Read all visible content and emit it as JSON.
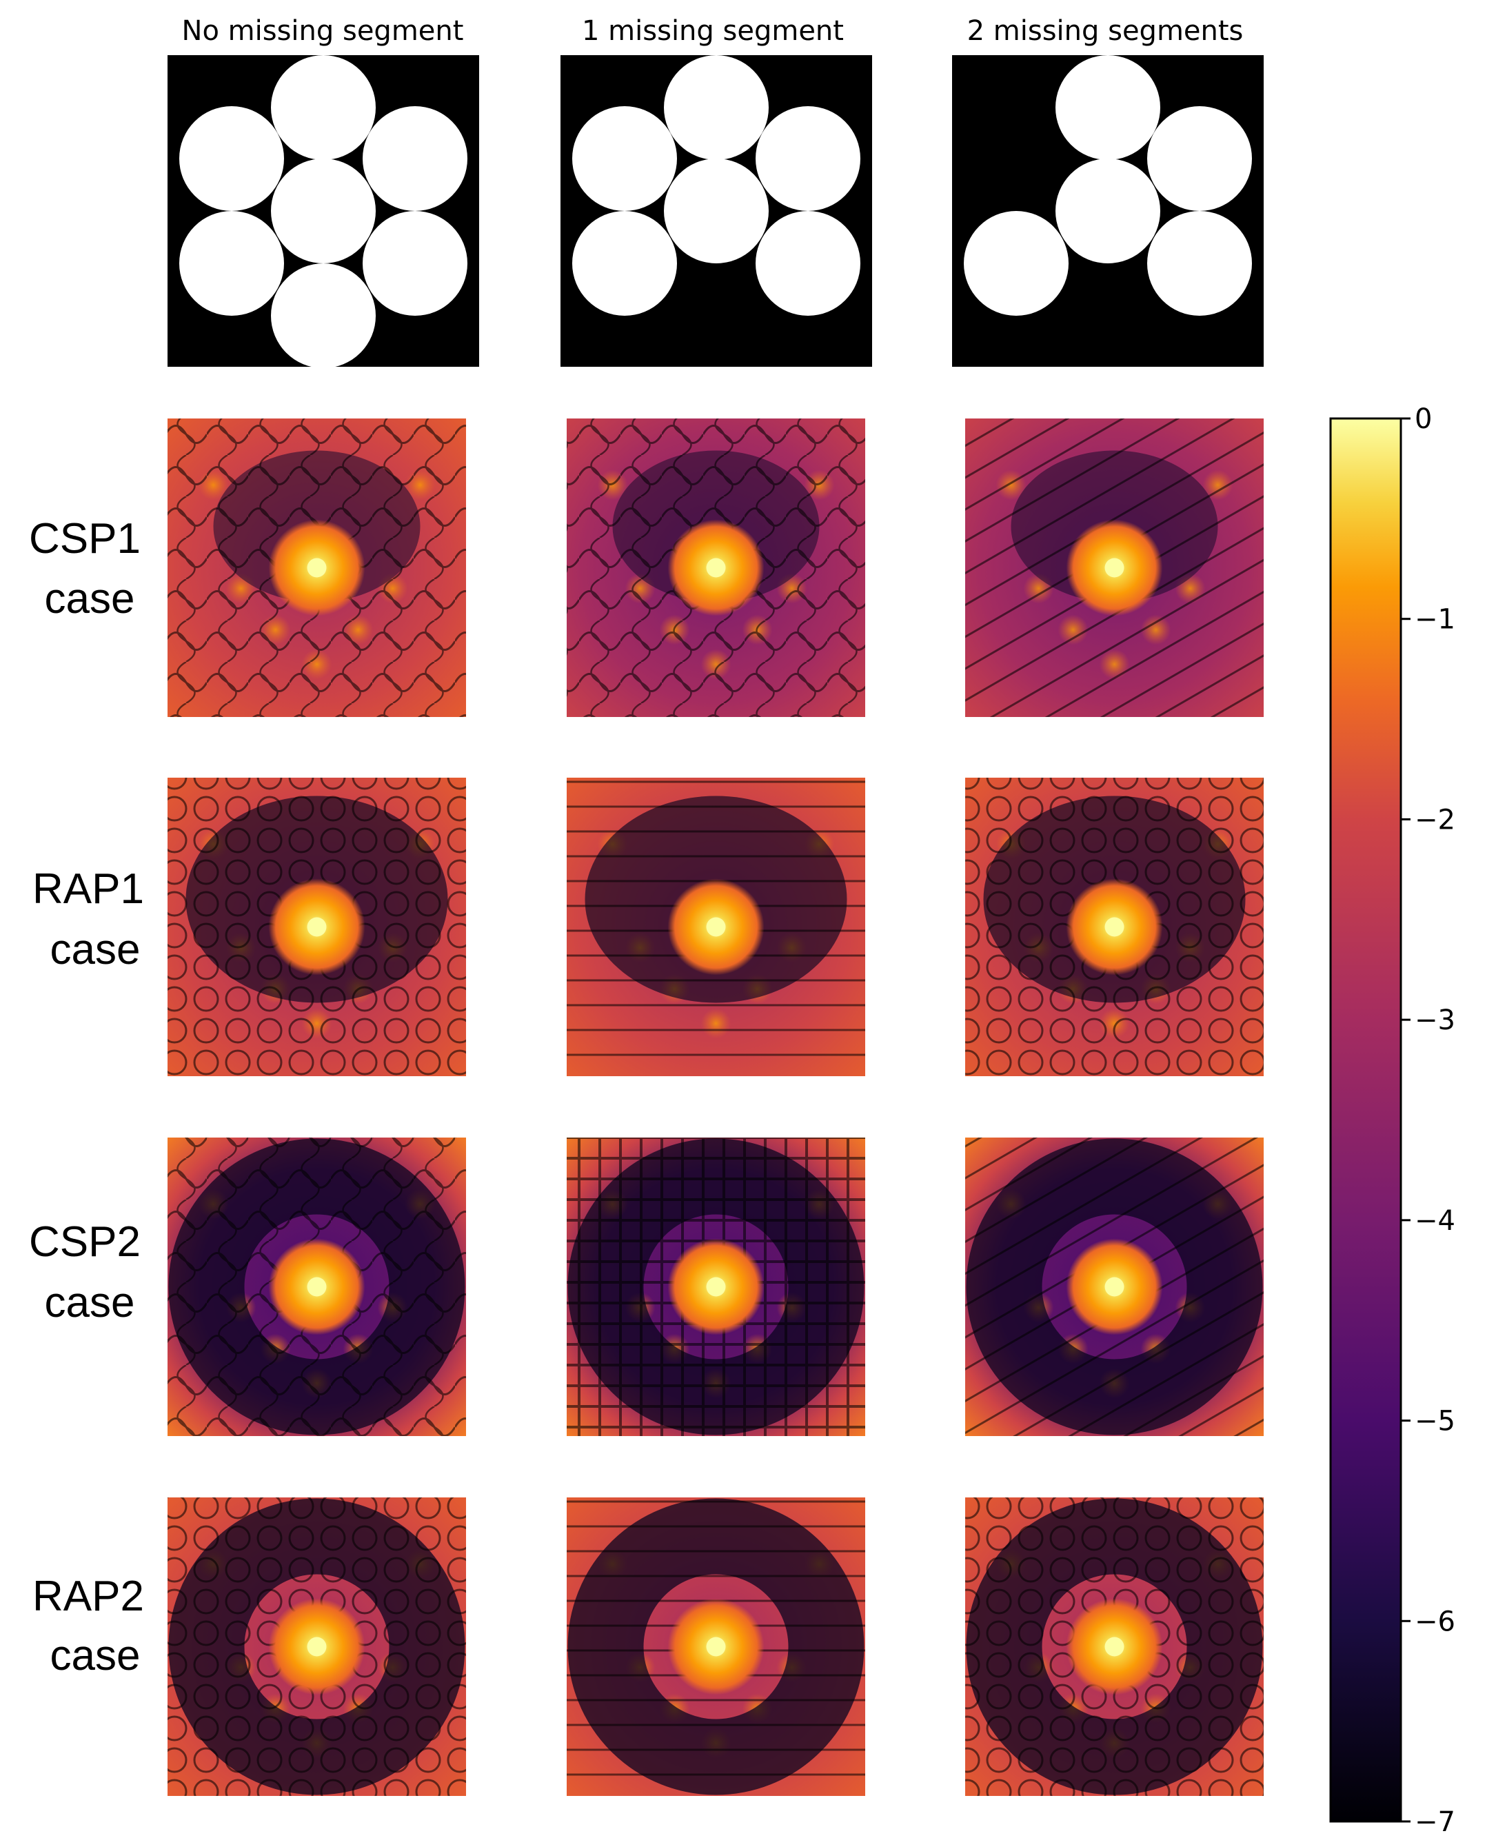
{
  "chart_data": {
    "type": "heatmap",
    "columns": [
      "No missing segment",
      "1 missing segment",
      "2 missing segments"
    ],
    "rows": [
      {
        "label_line1": "CSP1",
        "label_line2": "case"
      },
      {
        "label_line1": "RAP1",
        "label_line2": "case"
      },
      {
        "label_line1": "CSP2",
        "label_line2": "case"
      },
      {
        "label_line1": "RAP2",
        "label_line2": "case"
      }
    ],
    "pupils": [
      {
        "missing_segments": 0,
        "segments": [
          "center",
          "top",
          "top-right",
          "bottom-right",
          "bottom",
          "bottom-left",
          "top-left"
        ]
      },
      {
        "missing_segments": 1,
        "segments": [
          "center",
          "top",
          "top-right",
          "bottom-right",
          "bottom-left",
          "top-left"
        ]
      },
      {
        "missing_segments": 2,
        "segments": [
          "center",
          "top",
          "top-right",
          "bottom-right",
          "bottom-left"
        ]
      }
    ],
    "colorbar": {
      "colormap": "inferno",
      "range": [
        -7,
        0
      ],
      "ticks": [
        0,
        -1,
        -2,
        -3,
        -4,
        -5,
        -6,
        -7
      ],
      "tick_labels": [
        "0",
        "−1",
        "−2",
        "−3",
        "−4",
        "−5",
        "−6",
        "−7"
      ]
    },
    "colors": {
      "c0": "#000004",
      "c1": "#320a5e",
      "c2": "#781b6c",
      "c3": "#bc3754",
      "c4": "#ed6925",
      "c5": "#fbb61a",
      "c6": "#fcffa4"
    }
  }
}
